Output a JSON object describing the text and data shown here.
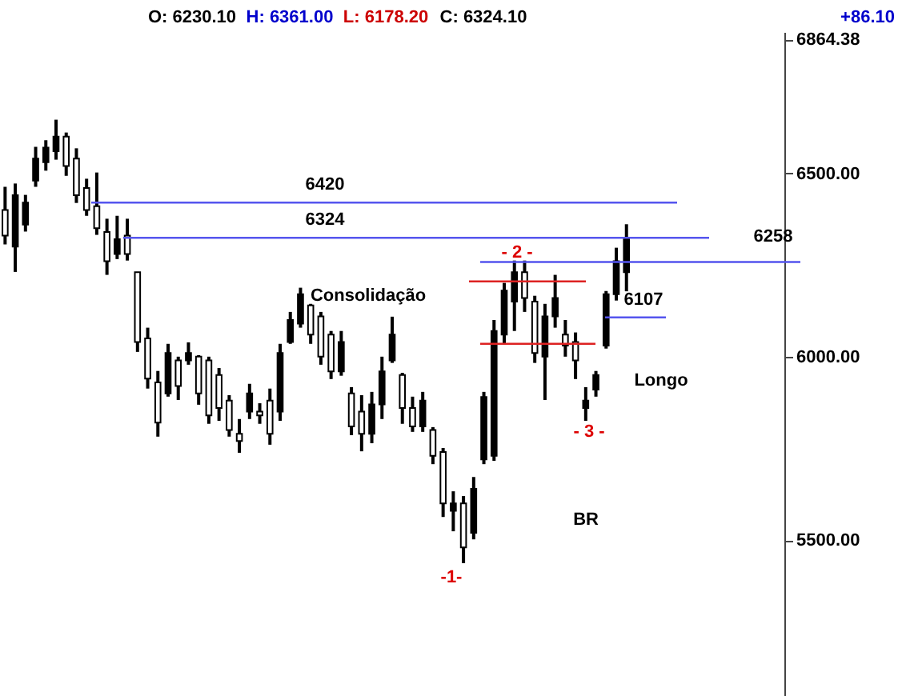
{
  "chart_data": {
    "type": "candlestick",
    "categories": [
      null,
      null,
      null,
      null,
      null,
      null,
      null,
      null,
      null,
      null,
      null,
      null,
      null,
      null,
      null,
      null,
      null,
      null,
      null,
      null,
      null,
      null,
      null,
      null,
      null,
      null,
      null,
      null,
      null,
      null,
      null,
      null,
      null,
      null,
      null,
      null,
      null,
      null,
      null,
      null,
      null,
      null,
      null,
      null,
      null,
      null,
      null,
      null,
      null,
      null,
      null,
      null,
      null,
      null,
      null,
      null,
      null,
      null,
      null,
      null,
      null,
      null,
      null,
      null,
      null,
      null,
      null,
      null,
      null,
      null,
      null,
      null,
      null,
      null,
      null,
      null,
      null
    ],
    "ohlc": [
      [
        6400,
        6463,
        6306,
        6330
      ],
      [
        6300,
        6472,
        6231,
        6440
      ],
      [
        6360,
        6441,
        6341,
        6420
      ],
      [
        6480,
        6572,
        6463,
        6540
      ],
      [
        6530,
        6590,
        6507,
        6570
      ],
      [
        6560,
        6646,
        6537,
        6600
      ],
      [
        6600,
        6611,
        6493,
        6520
      ],
      [
        6540,
        6568,
        6419,
        6440
      ],
      [
        6460,
        6485,
        6384,
        6400
      ],
      [
        6410,
        6502,
        6332,
        6350
      ],
      [
        6340,
        6376,
        6223,
        6260
      ],
      [
        6280,
        6384,
        6266,
        6320
      ],
      [
        6330,
        6376,
        6262,
        6280
      ],
      [
        6230,
        6231,
        6013,
        6040
      ],
      [
        6050,
        6079,
        5913,
        5940
      ],
      [
        5930,
        5961,
        5782,
        5820
      ],
      [
        5900,
        6035,
        5891,
        6010
      ],
      [
        5990,
        6000,
        5882,
        5920
      ],
      [
        5990,
        6039,
        5978,
        6010
      ],
      [
        6000,
        6004,
        5869,
        5900
      ],
      [
        5990,
        6000,
        5817,
        5840
      ],
      [
        5950,
        5969,
        5825,
        5860
      ],
      [
        5880,
        5895,
        5782,
        5800
      ],
      [
        5790,
        5830,
        5738,
        5770
      ],
      [
        5850,
        5926,
        5830,
        5900
      ],
      [
        5850,
        5873,
        5817,
        5840
      ],
      [
        5880,
        5913,
        5760,
        5790
      ],
      [
        5850,
        6035,
        5825,
        6010
      ],
      [
        6040,
        6122,
        6035,
        6100
      ],
      [
        6090,
        6188,
        6079,
        6170
      ],
      [
        6140,
        6144,
        6035,
        6060
      ],
      [
        6110,
        6122,
        5978,
        6000
      ],
      [
        6060,
        6070,
        5939,
        5960
      ],
      [
        5960,
        6070,
        5948,
        6040
      ],
      [
        5900,
        5917,
        5786,
        5810
      ],
      [
        5850,
        5895,
        5742,
        5790
      ],
      [
        5790,
        5904,
        5764,
        5870
      ],
      [
        5870,
        6000,
        5830,
        5960
      ],
      [
        5990,
        6109,
        5983,
        6060
      ],
      [
        5950,
        5956,
        5817,
        5860
      ],
      [
        5860,
        5891,
        5795,
        5810
      ],
      [
        5810,
        5904,
        5795,
        5880
      ],
      [
        5800,
        5808,
        5707,
        5730
      ],
      [
        5740,
        5751,
        5563,
        5600
      ],
      [
        5580,
        5633,
        5524,
        5600
      ],
      [
        5600,
        5620,
        5437,
        5480
      ],
      [
        5520,
        5672,
        5502,
        5640
      ],
      [
        5720,
        5904,
        5707,
        5890
      ],
      [
        5730,
        6100,
        5716,
        6070
      ],
      [
        6060,
        6201,
        6035,
        6180
      ],
      [
        6150,
        6262,
        6070,
        6230
      ],
      [
        6230,
        6262,
        6122,
        6160
      ],
      [
        6150,
        6166,
        5983,
        6010
      ],
      [
        6000,
        6144,
        5882,
        6110
      ],
      [
        6110,
        6223,
        6079,
        6160
      ],
      [
        6060,
        6100,
        6000,
        6030
      ],
      [
        6040,
        6066,
        5939,
        5990
      ],
      [
        5860,
        5917,
        5825,
        5880
      ],
      [
        5910,
        5961,
        5891,
        5950
      ],
      [
        6030,
        6179,
        6022,
        6170
      ],
      [
        6170,
        6297,
        6153,
        6260
      ],
      [
        6230.1,
        6361,
        6178.2,
        6324.1
      ],
      null,
      null,
      null,
      null,
      null,
      null,
      null,
      null,
      null,
      null,
      null,
      null,
      null,
      null,
      null
    ],
    "color": "#000000",
    "ylim": [
      5075,
      6885
    ],
    "yticks": [
      {
        "value": 5500,
        "label": "5500.00"
      },
      {
        "value": 6000,
        "label": "6000.00"
      },
      {
        "value": 6500,
        "label": "6500.00"
      },
      {
        "value": 6864.38,
        "label": "6864.38"
      }
    ],
    "tick_labels": "y",
    "grid": false,
    "ref_lines": [
      {
        "axis": "y",
        "value": 6420,
        "label": "6420",
        "color": "#5555ee"
      },
      {
        "axis": "y",
        "value": 6324,
        "label": "6324",
        "color": "#5555ee"
      },
      {
        "axis": "y",
        "value": 6258,
        "label": "6258",
        "color": "#5555ee"
      },
      {
        "axis": "y",
        "value": 6107,
        "label": "6107",
        "color": "#5555ee"
      },
      {
        "axis": "y",
        "value": 6205,
        "label": null,
        "color": "#dd2222"
      },
      {
        "axis": "y",
        "value": 6035,
        "label": null,
        "color": "#dd2222"
      }
    ],
    "annotations": [
      "O: 6230.10",
      "H: 6361.00",
      "L: 6178.20",
      "C: 6324.10",
      "+86.10",
      "Consolidação",
      "- 2 -",
      "- 3 -",
      "-1-",
      "Longo",
      "BR"
    ]
  }
}
